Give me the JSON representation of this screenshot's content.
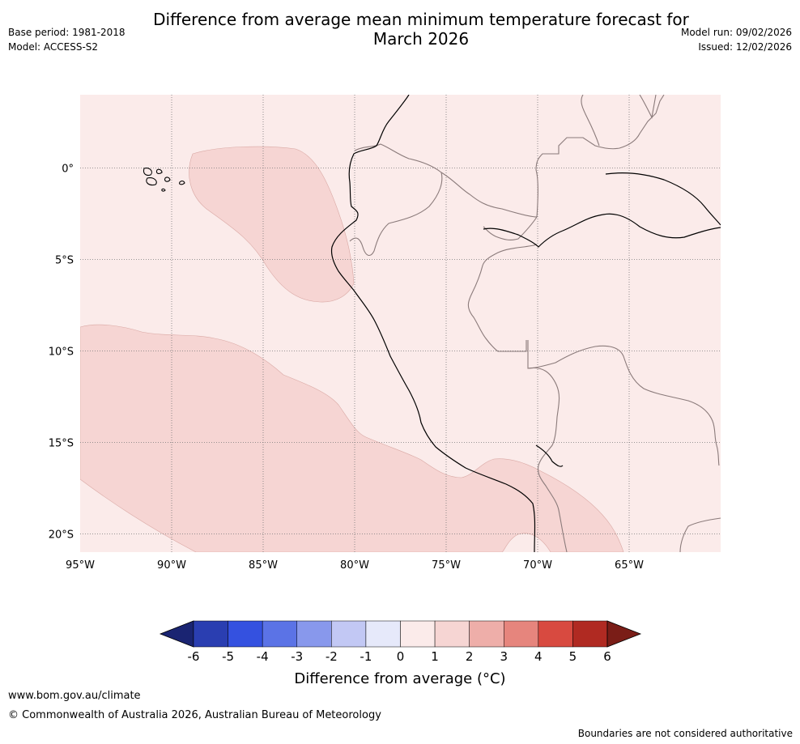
{
  "header": {
    "title_line1": "Difference from average mean minimum temperature forecast for",
    "title_line2": "March 2026",
    "base_period": "Base period: 1981-2018",
    "model": "Model: ACCESS-S2",
    "model_run": "Model run: 09/02/2026",
    "issued": "Issued: 12/02/2026"
  },
  "map": {
    "region": "Western South America",
    "lon_ticks": [
      "95°W",
      "90°W",
      "85°W",
      "80°W",
      "75°W",
      "70°W",
      "65°W"
    ],
    "lat_ticks": [
      "0°",
      "5°S",
      "10°S",
      "15°S",
      "20°S"
    ],
    "lon_values": [
      -95,
      -90,
      -85,
      -80,
      -75,
      -70,
      -65
    ],
    "lat_values": [
      0,
      -5,
      -10,
      -15,
      -20
    ],
    "extent": {
      "lon_min": -95,
      "lon_max": -60,
      "lat_min": -21,
      "lat_max": 4
    },
    "anomaly_classes_present": [
      "0 to 1",
      "1 to 2"
    ]
  },
  "colorbar": {
    "ticks": [
      "-6",
      "-5",
      "-4",
      "-3",
      "-2",
      "-1",
      "0",
      "1",
      "2",
      "3",
      "4",
      "5",
      "6"
    ],
    "colors": [
      "#1a2472",
      "#2a3eb1",
      "#3451e0",
      "#5b73e6",
      "#8898ec",
      "#c2c8f4",
      "#e6e9fa",
      "#fbebea",
      "#f6d5d3",
      "#eeaea9",
      "#e6857d",
      "#d84a40",
      "#b02a22",
      "#7a1d17"
    ],
    "label": "Difference from average (°C)"
  },
  "footer": {
    "url": "www.bom.gov.au/climate",
    "copyright": "© Commonwealth of Australia 2026, Australian Bureau of Meteorology",
    "disclaimer": "Boundaries are not considered authoritative"
  }
}
